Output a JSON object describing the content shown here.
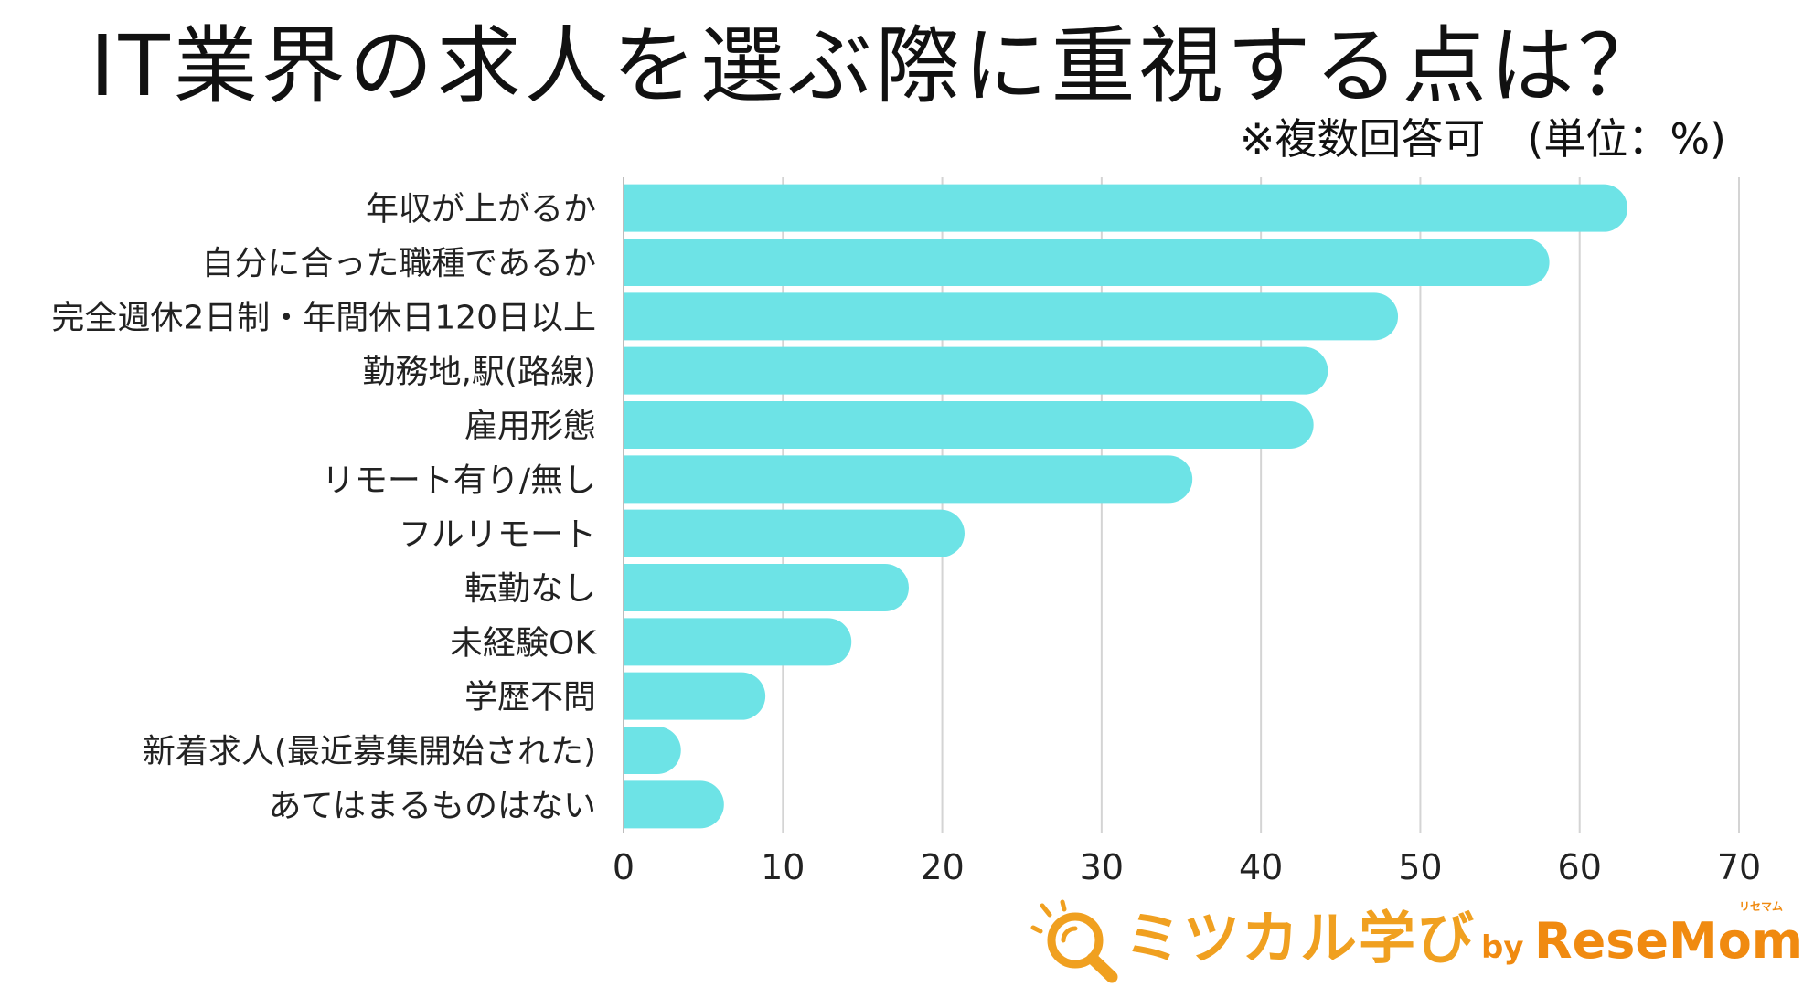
{
  "chart_data": {
    "type": "bar",
    "orientation": "horizontal",
    "title": "IT業界の求人を選ぶ際に重視する点は？",
    "subtitle": "※複数回答可　(単位：%)",
    "categories": [
      "年収が上がるか",
      "自分に合った職種であるか",
      "完全週休2日制・年間休日120日以上",
      "勤務地,駅(路線)",
      "雇用形態",
      "リモート有り/無し",
      "フルリモート",
      "転勤なし",
      "未経験OK",
      "学歴不問",
      "新着求人(最近募集開始された)",
      "あてはまるものはない"
    ],
    "values": [
      63.0,
      58.1,
      48.6,
      44.2,
      43.3,
      35.7,
      21.4,
      17.9,
      14.3,
      8.9,
      3.6,
      6.3
    ],
    "xlim": [
      0,
      70
    ],
    "xticks": [
      0,
      10,
      20,
      30,
      40,
      50,
      60,
      70
    ],
    "grid": true,
    "bar_color": "#6de3e6",
    "grid_color": "#d4d4d4"
  },
  "logo": {
    "icon": "magnifier-icon",
    "text": "ミツカル学び",
    "by": "by",
    "brand": "ReseMom",
    "ruby": "リセマム",
    "color": "#f0a020"
  }
}
